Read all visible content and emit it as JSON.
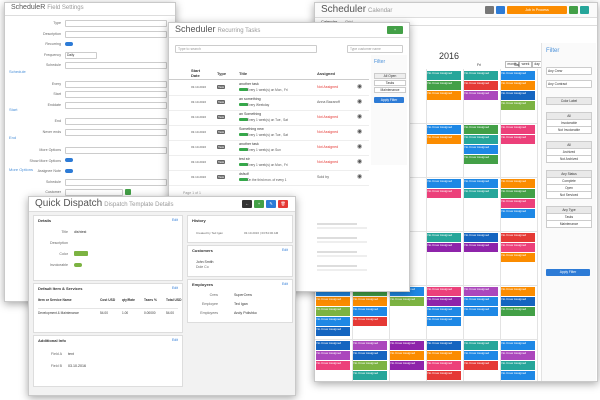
{
  "settings": {
    "title": "ScheduleR",
    "crumb": "Field Settings",
    "rows": [
      "Type",
      "Description",
      "Recurring",
      "Frequency",
      "Schedule",
      "Every",
      "Start",
      "Enddate",
      "End",
      "Never ends",
      "More Options",
      "Show More Options",
      "Assignee Note",
      "Schedule",
      "Customer",
      "Asset",
      "Complete"
    ],
    "freq_value": "Daily",
    "sections": [
      "Schedule",
      "Start",
      "End",
      "More Options"
    ]
  },
  "recurring": {
    "title": "Scheduler",
    "crumb": "Recurring Tasks",
    "search_placeholder": "Type to search",
    "customer_placeholder": "Type customer name",
    "columns": [
      "Start Date",
      "Type",
      "Title",
      "Assigned"
    ],
    "rows": [
      {
        "date": "03.10.2016",
        "type": "Task",
        "title": "another task",
        "freq": "Every 1 week(s) on Mon , Fri",
        "assigned": "Not Assigned",
        "status": "red"
      },
      {
        "date": "03.10.2016",
        "type": "Task",
        "title": "an something",
        "freq": "Every Weekday",
        "assigned": "Anna Bazaroff",
        "status": "blue"
      },
      {
        "date": "03.10.2016",
        "type": "Task",
        "title": "an Something",
        "freq": "Every 1 week(s) on Tue , Sat",
        "assigned": "Not Assigned",
        "status": "red"
      },
      {
        "date": "03.10.2016",
        "type": "Task",
        "title": "Something new",
        "freq": "Every 1 week(s) on Tue , Sat",
        "assigned": "Not Assigned",
        "status": "red"
      },
      {
        "date": "03.10.2016",
        "type": "Task",
        "title": "another task",
        "freq": "Every 1 week(s) on Sun",
        "assigned": "Not Assigned",
        "status": "red"
      },
      {
        "date": "03.10.2016",
        "type": "Task",
        "title": "test str",
        "freq": "Every 1 week(s) on Mon , Fri",
        "assigned": "Not Assigned",
        "status": "red"
      },
      {
        "date": "03.10.2016",
        "type": "Task",
        "title": "dsfsdf",
        "freq": "On the third mon. of every 1",
        "assigned": "Sold by",
        "status": "blue"
      }
    ],
    "filter": {
      "title": "Filter",
      "options": [
        "All Open",
        "Tasks",
        "Maintenance"
      ],
      "apply": "Apply Filter"
    },
    "pager": "Page 1 of 1"
  },
  "calendar": {
    "title": "Scheduler",
    "crumb": "Calendar",
    "tabs": [
      "Calendar",
      "Grid"
    ],
    "month": "2016",
    "view_buttons": [
      "month",
      "week",
      "day"
    ],
    "days": [
      "Fri",
      "Sat",
      "Sun"
    ],
    "top_btn": "Job in Process",
    "filter": {
      "title": "Filter",
      "any_crew": "Any Crew",
      "any_contract": "Any Contract",
      "groups": [
        [
          "Color Label"
        ],
        [
          "All",
          "Invoiceable",
          "Not Invoiceable"
        ],
        [
          "All",
          "Archived",
          "Not Archived"
        ],
        [
          "Any Status",
          "Complete",
          "Open",
          "Not Serviced"
        ],
        [
          "Any Type",
          "Tasks",
          "Maintenance"
        ]
      ],
      "apply": "Apply Filter"
    },
    "chip_text": "No Crew Assigned"
  },
  "dispatch": {
    "title": "Quick Dispatch",
    "crumb": "Dispatch Template Details",
    "details": {
      "title": "Details",
      "edit": "Edit",
      "rows": [
        [
          "Title",
          "dishtest"
        ],
        [
          "Description",
          ""
        ],
        [
          "Color",
          ""
        ],
        [
          "Invoiceable",
          ""
        ]
      ]
    },
    "items": {
      "title": "Default Item & Services",
      "edit": "Edit",
      "columns": [
        "Item or Service Name",
        "Cost USD",
        "qty/Rate",
        "Taxes %",
        "Total USD"
      ],
      "row": [
        "Development & Maintenance",
        "54.00",
        "1.00",
        "0.00000",
        "54.00"
      ]
    },
    "info": {
      "title": "Additional Info",
      "edit": "Edit",
      "rows": [
        [
          "Field A",
          "text"
        ],
        [
          "Field B",
          "03.10.2016"
        ]
      ]
    },
    "history": {
      "title": "History",
      "created": "Created by Ted Igan",
      "date": "03.10.2016 | 03:54:00 AM"
    },
    "customers": {
      "title": "Customers",
      "edit": "Edit",
      "name": "John Smith",
      "sub": "Dole Co"
    },
    "employees": {
      "title": "Employees",
      "edit": "Edit",
      "rows": [
        [
          "Crew",
          "SuperCrew"
        ],
        [
          "Employee",
          "Ted Igan"
        ],
        [
          "Employees",
          "Andy Polishko"
        ]
      ]
    }
  },
  "colors": {
    "red": "#e53935",
    "green": "#43a047",
    "orange": "#fb8c00",
    "purple": "#8e24aa",
    "blue": "#1e88e5",
    "teal": "#26a69a",
    "lightgreen": "#7cb342",
    "navy": "#1565c0",
    "violet": "#ab47bc",
    "pink": "#ec407a"
  }
}
